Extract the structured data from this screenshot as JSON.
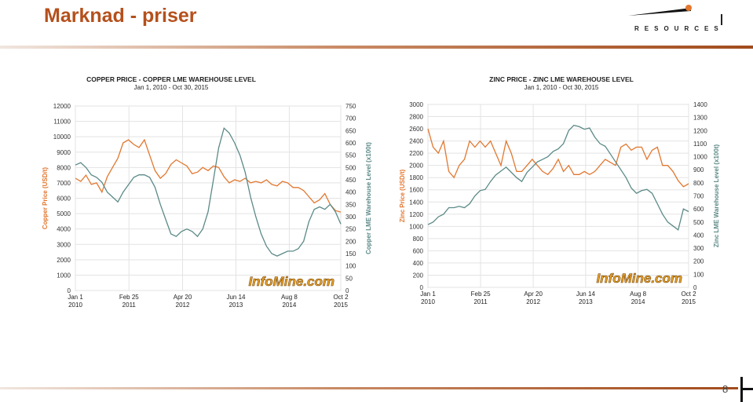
{
  "slide": {
    "title": "Marknad - priser",
    "page_number": "8"
  },
  "logo": {
    "text": "RESOURCES"
  },
  "colors": {
    "price": "#e2772f",
    "warehouse": "#5b8a87",
    "title": "#b5501c",
    "axis_left": "#e2772f",
    "axis_right": "#5b8a87"
  },
  "chart_data": [
    {
      "type": "line",
      "title": "COPPER PRICE - COPPER LME WAREHOUSE LEVEL",
      "subtitle": "Jan 1, 2010 - Oct 30, 2015",
      "watermark": "InfoMine.com",
      "ylabel": "Copper Price (USD/t)",
      "y2label": "Copper LME Warehouse Level (x100t)",
      "ylim": [
        0,
        12000
      ],
      "y2lim": [
        0,
        750
      ],
      "yticks": [
        0,
        1000,
        2000,
        3000,
        4000,
        5000,
        6000,
        7000,
        8000,
        9000,
        10000,
        11000,
        12000
      ],
      "y2ticks": [
        0,
        50,
        100,
        150,
        200,
        250,
        300,
        350,
        400,
        450,
        500,
        550,
        600,
        650,
        700,
        750
      ],
      "x_ticks": [
        {
          "line1": "Jan 1",
          "line2": "2010",
          "t": 0.0
        },
        {
          "line1": "Feb 25",
          "line2": "2011",
          "t": 0.202
        },
        {
          "line1": "Apr 20",
          "line2": "2012",
          "t": 0.404
        },
        {
          "line1": "Jun 14",
          "line2": "2013",
          "t": 0.605
        },
        {
          "line1": "Aug 8",
          "line2": "2014",
          "t": 0.806
        },
        {
          "line1": "Oct 2",
          "line2": "2015",
          "t": 1.0
        }
      ],
      "series": [
        {
          "name": "Copper Price",
          "axis": "left",
          "points": [
            [
              0.0,
              7300
            ],
            [
              0.02,
              7100
            ],
            [
              0.04,
              7500
            ],
            [
              0.06,
              6900
            ],
            [
              0.08,
              7000
            ],
            [
              0.1,
              6400
            ],
            [
              0.12,
              7400
            ],
            [
              0.14,
              8000
            ],
            [
              0.16,
              8600
            ],
            [
              0.18,
              9600
            ],
            [
              0.2,
              9800
            ],
            [
              0.22,
              9500
            ],
            [
              0.24,
              9300
            ],
            [
              0.26,
              9800
            ],
            [
              0.28,
              8800
            ],
            [
              0.3,
              7800
            ],
            [
              0.32,
              7300
            ],
            [
              0.34,
              7600
            ],
            [
              0.36,
              8200
            ],
            [
              0.38,
              8500
            ],
            [
              0.4,
              8300
            ],
            [
              0.42,
              8100
            ],
            [
              0.44,
              7600
            ],
            [
              0.46,
              7700
            ],
            [
              0.48,
              8000
            ],
            [
              0.5,
              7800
            ],
            [
              0.52,
              8100
            ],
            [
              0.54,
              8000
            ],
            [
              0.56,
              7400
            ],
            [
              0.58,
              7000
            ],
            [
              0.6,
              7200
            ],
            [
              0.62,
              7100
            ],
            [
              0.64,
              7300
            ],
            [
              0.66,
              7000
            ],
            [
              0.68,
              7100
            ],
            [
              0.7,
              7000
            ],
            [
              0.72,
              7200
            ],
            [
              0.74,
              6900
            ],
            [
              0.76,
              6800
            ],
            [
              0.78,
              7100
            ],
            [
              0.8,
              7000
            ],
            [
              0.82,
              6700
            ],
            [
              0.84,
              6700
            ],
            [
              0.86,
              6500
            ],
            [
              0.88,
              6100
            ],
            [
              0.9,
              5700
            ],
            [
              0.92,
              5900
            ],
            [
              0.94,
              6300
            ],
            [
              0.96,
              5600
            ],
            [
              0.98,
              5200
            ],
            [
              1.0,
              5100
            ]
          ]
        },
        {
          "name": "Copper LME Warehouse Level",
          "axis": "right",
          "points": [
            [
              0.0,
              510
            ],
            [
              0.02,
              520
            ],
            [
              0.04,
              500
            ],
            [
              0.06,
              470
            ],
            [
              0.08,
              460
            ],
            [
              0.1,
              440
            ],
            [
              0.12,
              400
            ],
            [
              0.14,
              380
            ],
            [
              0.16,
              360
            ],
            [
              0.18,
              400
            ],
            [
              0.2,
              430
            ],
            [
              0.22,
              460
            ],
            [
              0.24,
              470
            ],
            [
              0.26,
              470
            ],
            [
              0.28,
              460
            ],
            [
              0.3,
              420
            ],
            [
              0.32,
              350
            ],
            [
              0.34,
              290
            ],
            [
              0.36,
              230
            ],
            [
              0.38,
              220
            ],
            [
              0.4,
              240
            ],
            [
              0.42,
              250
            ],
            [
              0.44,
              240
            ],
            [
              0.46,
              220
            ],
            [
              0.48,
              250
            ],
            [
              0.5,
              320
            ],
            [
              0.52,
              450
            ],
            [
              0.54,
              580
            ],
            [
              0.56,
              660
            ],
            [
              0.58,
              640
            ],
            [
              0.6,
              600
            ],
            [
              0.62,
              550
            ],
            [
              0.64,
              480
            ],
            [
              0.66,
              380
            ],
            [
              0.68,
              300
            ],
            [
              0.7,
              230
            ],
            [
              0.72,
              180
            ],
            [
              0.74,
              150
            ],
            [
              0.76,
              140
            ],
            [
              0.78,
              150
            ],
            [
              0.8,
              160
            ],
            [
              0.82,
              160
            ],
            [
              0.84,
              170
            ],
            [
              0.86,
              200
            ],
            [
              0.88,
              280
            ],
            [
              0.9,
              330
            ],
            [
              0.92,
              340
            ],
            [
              0.94,
              330
            ],
            [
              0.96,
              350
            ],
            [
              0.98,
              320
            ],
            [
              1.0,
              270
            ]
          ]
        }
      ]
    },
    {
      "type": "line",
      "title": "ZINC PRICE - ZINC LME WAREHOUSE LEVEL",
      "subtitle": "Jan 1, 2010 - Oct 30, 2015",
      "watermark": "InfoMine.com",
      "ylabel": "Zinc Price (USD/t)",
      "y2label": "Zinc LME Warehouse Level (x100t)",
      "ylim": [
        0,
        3000
      ],
      "y2lim": [
        0,
        1400
      ],
      "yticks": [
        0,
        200,
        400,
        600,
        800,
        1000,
        1200,
        1400,
        1600,
        1800,
        2000,
        2200,
        2400,
        2600,
        2800,
        3000
      ],
      "y2ticks": [
        0,
        100,
        200,
        300,
        400,
        500,
        600,
        700,
        800,
        900,
        1000,
        1100,
        1200,
        1300,
        1400
      ],
      "x_ticks": [
        {
          "line1": "Jan 1",
          "line2": "2010",
          "t": 0.0
        },
        {
          "line1": "Feb 25",
          "line2": "2011",
          "t": 0.202
        },
        {
          "line1": "Apr 20",
          "line2": "2012",
          "t": 0.404
        },
        {
          "line1": "Jun 14",
          "line2": "2013",
          "t": 0.605
        },
        {
          "line1": "Aug 8",
          "line2": "2014",
          "t": 0.806
        },
        {
          "line1": "Oct 2",
          "line2": "2015",
          "t": 1.0
        }
      ],
      "series": [
        {
          "name": "Zinc Price",
          "axis": "left",
          "points": [
            [
              0.0,
              2600
            ],
            [
              0.02,
              2300
            ],
            [
              0.04,
              2200
            ],
            [
              0.06,
              2400
            ],
            [
              0.08,
              1900
            ],
            [
              0.1,
              1800
            ],
            [
              0.12,
              2000
            ],
            [
              0.14,
              2100
            ],
            [
              0.16,
              2400
            ],
            [
              0.18,
              2300
            ],
            [
              0.2,
              2400
            ],
            [
              0.22,
              2300
            ],
            [
              0.24,
              2400
            ],
            [
              0.26,
              2200
            ],
            [
              0.28,
              2000
            ],
            [
              0.3,
              2400
            ],
            [
              0.32,
              2200
            ],
            [
              0.34,
              1900
            ],
            [
              0.36,
              1900
            ],
            [
              0.38,
              2000
            ],
            [
              0.4,
              2100
            ],
            [
              0.42,
              2000
            ],
            [
              0.44,
              1900
            ],
            [
              0.46,
              1850
            ],
            [
              0.48,
              1950
            ],
            [
              0.5,
              2100
            ],
            [
              0.52,
              1900
            ],
            [
              0.54,
              2000
            ],
            [
              0.56,
              1850
            ],
            [
              0.58,
              1850
            ],
            [
              0.6,
              1900
            ],
            [
              0.62,
              1850
            ],
            [
              0.64,
              1900
            ],
            [
              0.66,
              2000
            ],
            [
              0.68,
              2100
            ],
            [
              0.7,
              2050
            ],
            [
              0.72,
              2000
            ],
            [
              0.74,
              2300
            ],
            [
              0.76,
              2350
            ],
            [
              0.78,
              2250
            ],
            [
              0.8,
              2300
            ],
            [
              0.82,
              2300
            ],
            [
              0.84,
              2100
            ],
            [
              0.86,
              2250
            ],
            [
              0.88,
              2300
            ],
            [
              0.9,
              2000
            ],
            [
              0.92,
              2000
            ],
            [
              0.94,
              1900
            ],
            [
              0.96,
              1750
            ],
            [
              0.98,
              1650
            ],
            [
              1.0,
              1700
            ]
          ]
        },
        {
          "name": "Zinc LME Warehouse Level",
          "axis": "right",
          "points": [
            [
              0.0,
              480
            ],
            [
              0.02,
              500
            ],
            [
              0.04,
              540
            ],
            [
              0.06,
              560
            ],
            [
              0.08,
              610
            ],
            [
              0.1,
              610
            ],
            [
              0.12,
              620
            ],
            [
              0.14,
              610
            ],
            [
              0.16,
              640
            ],
            [
              0.18,
              700
            ],
            [
              0.2,
              740
            ],
            [
              0.22,
              750
            ],
            [
              0.24,
              810
            ],
            [
              0.26,
              860
            ],
            [
              0.28,
              890
            ],
            [
              0.3,
              920
            ],
            [
              0.32,
              880
            ],
            [
              0.34,
              840
            ],
            [
              0.36,
              810
            ],
            [
              0.38,
              880
            ],
            [
              0.4,
              920
            ],
            [
              0.42,
              960
            ],
            [
              0.44,
              980
            ],
            [
              0.46,
              1000
            ],
            [
              0.48,
              1040
            ],
            [
              0.5,
              1060
            ],
            [
              0.52,
              1100
            ],
            [
              0.54,
              1200
            ],
            [
              0.56,
              1240
            ],
            [
              0.58,
              1230
            ],
            [
              0.6,
              1210
            ],
            [
              0.62,
              1220
            ],
            [
              0.64,
              1150
            ],
            [
              0.66,
              1100
            ],
            [
              0.68,
              1080
            ],
            [
              0.7,
              1020
            ],
            [
              0.72,
              960
            ],
            [
              0.74,
              900
            ],
            [
              0.76,
              840
            ],
            [
              0.78,
              760
            ],
            [
              0.8,
              720
            ],
            [
              0.82,
              740
            ],
            [
              0.84,
              750
            ],
            [
              0.86,
              720
            ],
            [
              0.88,
              640
            ],
            [
              0.9,
              560
            ],
            [
              0.92,
              500
            ],
            [
              0.94,
              470
            ],
            [
              0.96,
              440
            ],
            [
              0.98,
              600
            ],
            [
              1.0,
              580
            ]
          ]
        }
      ]
    }
  ]
}
